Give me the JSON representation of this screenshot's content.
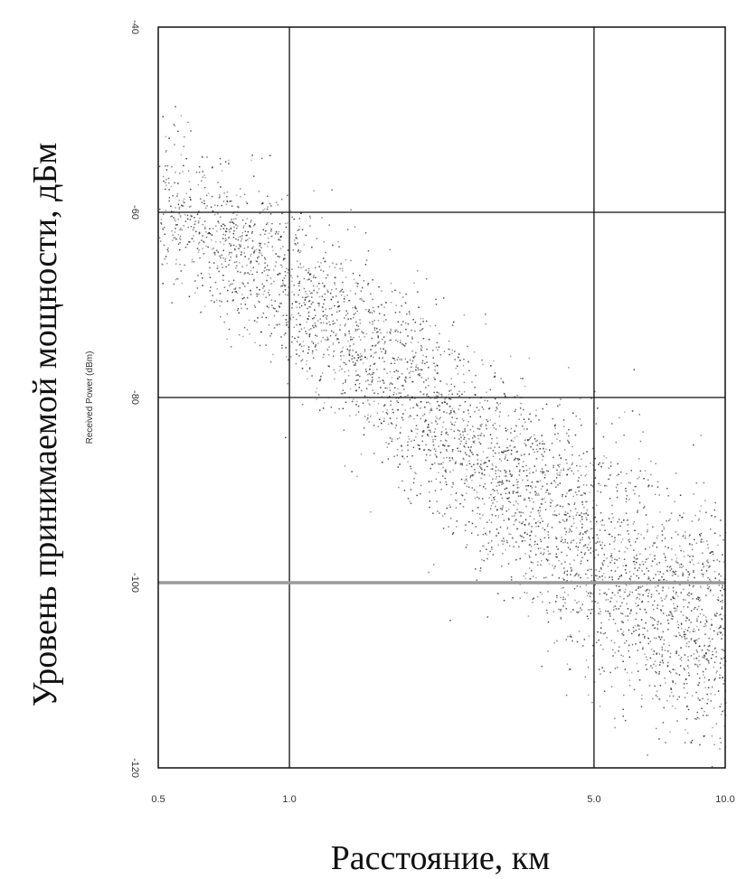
{
  "chart_data": {
    "type": "scatter",
    "title": "",
    "xlabel": "Расстояние, км",
    "ylabel": "Уровень принимаемой мощности, дБм",
    "ylabel_small": "Received Power (dBm)",
    "x_scale": "log",
    "xlim": [
      0.5,
      10.0
    ],
    "ylim": [
      -120,
      -40
    ],
    "x_ticks": [
      "0.5",
      "1.0",
      "5.0",
      "10.0"
    ],
    "x_tick_values": [
      0.5,
      1.0,
      5.0,
      10.0
    ],
    "y_ticks": [
      "-40",
      "-60",
      "-80",
      "-100",
      "-120"
    ],
    "y_tick_values": [
      -40,
      -60,
      -80,
      -100,
      -120
    ],
    "grid": true,
    "reference_line": -100,
    "trend": {
      "at_x": [
        0.5,
        1.0,
        5.0,
        10.0
      ],
      "y": [
        -59,
        -68,
        -97,
        -106
      ]
    },
    "point_count": 4000,
    "spread_std_db": 5.5,
    "colors": {
      "points": "#222222",
      "grid": "#111111",
      "reference_line": "#9a9a9a"
    }
  }
}
